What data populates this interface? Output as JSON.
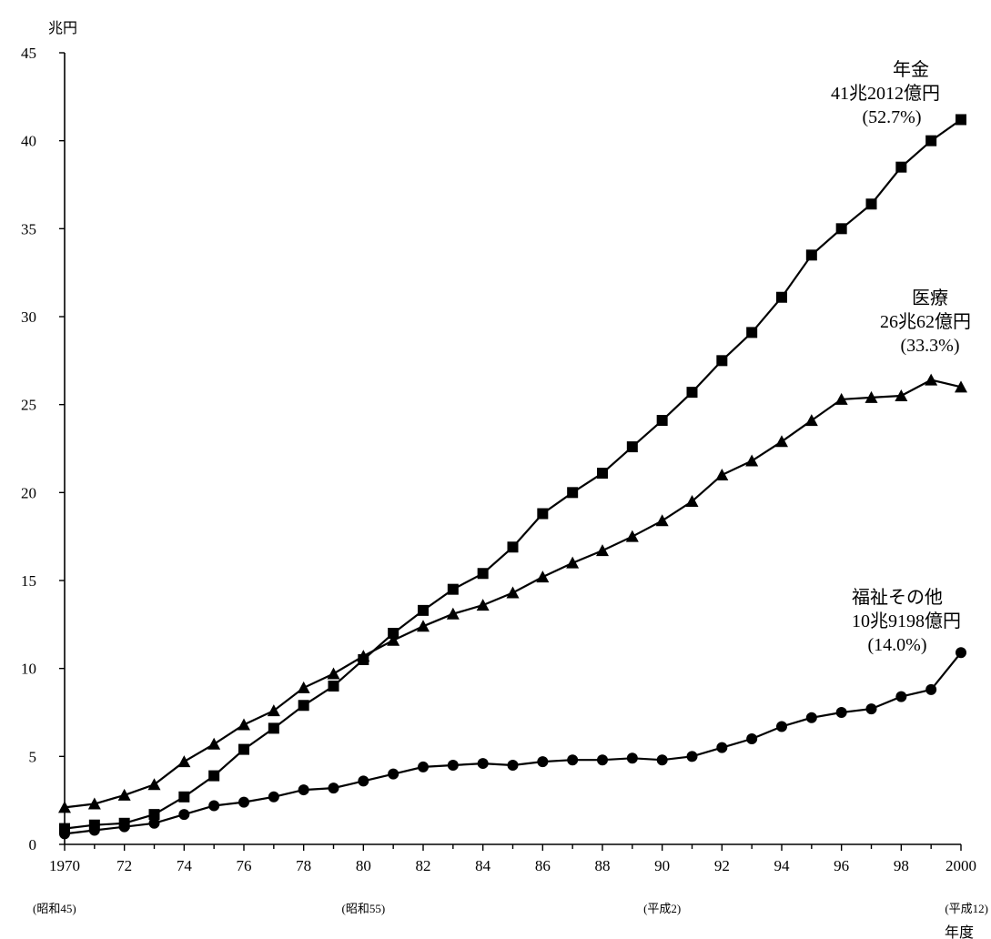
{
  "chart_data": {
    "type": "line",
    "y_unit": "兆円",
    "x_unit": "年度",
    "ylim": [
      0,
      45
    ],
    "yticks": [
      0,
      5,
      10,
      15,
      20,
      25,
      30,
      35,
      40,
      45
    ],
    "xlim": [
      1970,
      2000
    ],
    "x_tick_labels": [
      {
        "x": 1970,
        "label": "1970"
      },
      {
        "x": 1972,
        "label": "72"
      },
      {
        "x": 1974,
        "label": "74"
      },
      {
        "x": 1976,
        "label": "76"
      },
      {
        "x": 1978,
        "label": "78"
      },
      {
        "x": 1980,
        "label": "80"
      },
      {
        "x": 1982,
        "label": "82"
      },
      {
        "x": 1984,
        "label": "84"
      },
      {
        "x": 1986,
        "label": "86"
      },
      {
        "x": 1988,
        "label": "88"
      },
      {
        "x": 1990,
        "label": "90"
      },
      {
        "x": 1992,
        "label": "92"
      },
      {
        "x": 1994,
        "label": "94"
      },
      {
        "x": 1996,
        "label": "96"
      },
      {
        "x": 1998,
        "label": "98"
      },
      {
        "x": 2000,
        "label": "2000"
      }
    ],
    "era_labels": [
      {
        "x": 1970,
        "label": "(昭和45)"
      },
      {
        "x": 1980,
        "label": "(昭和55)"
      },
      {
        "x": 1990,
        "label": "(平成2)"
      },
      {
        "x": 2000,
        "label": "(平成12)"
      }
    ],
    "x": [
      1970,
      1971,
      1972,
      1973,
      1974,
      1975,
      1976,
      1977,
      1978,
      1979,
      1980,
      1981,
      1982,
      1983,
      1984,
      1985,
      1986,
      1987,
      1988,
      1989,
      1990,
      1991,
      1992,
      1993,
      1994,
      1995,
      1996,
      1997,
      1998,
      1999,
      2000
    ],
    "series": [
      {
        "key": "pension",
        "marker": "square",
        "values": [
          0.9,
          1.1,
          1.2,
          1.7,
          2.7,
          3.9,
          5.4,
          6.6,
          7.9,
          9.0,
          10.5,
          12.0,
          13.3,
          14.5,
          15.4,
          16.9,
          18.8,
          20.0,
          21.1,
          22.6,
          24.1,
          25.7,
          27.5,
          29.1,
          31.1,
          33.5,
          35.0,
          36.4,
          38.5,
          40.0,
          41.2
        ]
      },
      {
        "key": "medical",
        "marker": "triangle",
        "values": [
          2.1,
          2.3,
          2.8,
          3.4,
          4.7,
          5.7,
          6.8,
          7.6,
          8.9,
          9.7,
          10.7,
          11.6,
          12.4,
          13.1,
          13.6,
          14.3,
          15.2,
          16.0,
          16.7,
          17.5,
          18.4,
          19.5,
          21.0,
          21.8,
          22.9,
          24.1,
          25.3,
          25.4,
          25.5,
          26.4,
          26.0
        ]
      },
      {
        "key": "welfare",
        "marker": "circle",
        "values": [
          0.6,
          0.8,
          1.0,
          1.2,
          1.7,
          2.2,
          2.4,
          2.7,
          3.1,
          3.2,
          3.6,
          4.0,
          4.4,
          4.5,
          4.6,
          4.5,
          4.7,
          4.8,
          4.8,
          4.9,
          4.8,
          5.0,
          5.5,
          6.0,
          6.7,
          7.2,
          7.5,
          7.7,
          8.4,
          8.8,
          10.9
        ]
      }
    ],
    "annotations": [
      {
        "series": "pension",
        "lines": [
          "年金",
          "41兆2012億円",
          "(52.7%)"
        ]
      },
      {
        "series": "medical",
        "lines": [
          "医療",
          "26兆62億円",
          "(33.3%)"
        ]
      },
      {
        "series": "welfare",
        "lines": [
          "福祉その他",
          "10兆9198億円",
          "(14.0%)"
        ]
      }
    ]
  }
}
